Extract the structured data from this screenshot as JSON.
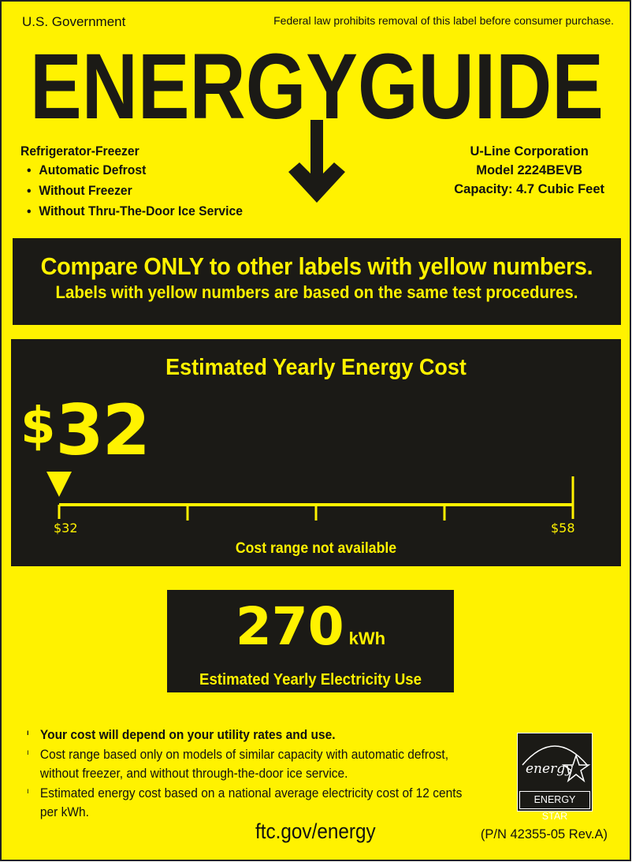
{
  "header": {
    "government": "U.S. Government",
    "notice": "Federal law prohibits removal of this label before consumer purchase.",
    "title": "ENERGYGUIDE"
  },
  "product": {
    "type": "Refrigerator-Freezer",
    "features": [
      "Automatic Defrost",
      "Without Freezer",
      "Without Thru-The-Door Ice Service"
    ]
  },
  "manufacturer": {
    "name": "U-Line Corporation",
    "model": "Model 2224BEVB",
    "capacity": "Capacity: 4.7 Cubic Feet"
  },
  "compare": {
    "headline": "Compare ONLY to other labels with yellow numbers.",
    "subline": "Labels with yellow numbers are based on the same test procedures."
  },
  "cost": {
    "heading": "Estimated Yearly Energy Cost",
    "currency": "$",
    "amount": "32",
    "scale": {
      "min": 32,
      "max": 58,
      "value": 32,
      "min_label": "$32",
      "max_label": "$58"
    },
    "range_note": "Cost range not available"
  },
  "electricity": {
    "value": "270",
    "unit": "kWh",
    "label": "Estimated Yearly Electricity Use"
  },
  "notes": [
    "Your cost will depend on your utility rates and use.",
    "Cost range based only on models of similar capacity with automatic defrost, without freezer, and without through-the-door ice service.",
    "Estimated energy cost based on a national average electricity cost of 12 cents per kWh."
  ],
  "footer": {
    "url": "ftc.gov/energy",
    "part_number": "(P/N 42355-05 Rev.A)"
  },
  "energy_star": {
    "script": "energy",
    "label": "ENERGY STAR"
  },
  "colors": {
    "label_yellow": "#fff200",
    "panel_dark": "#1b1a16",
    "text": "#111111"
  }
}
